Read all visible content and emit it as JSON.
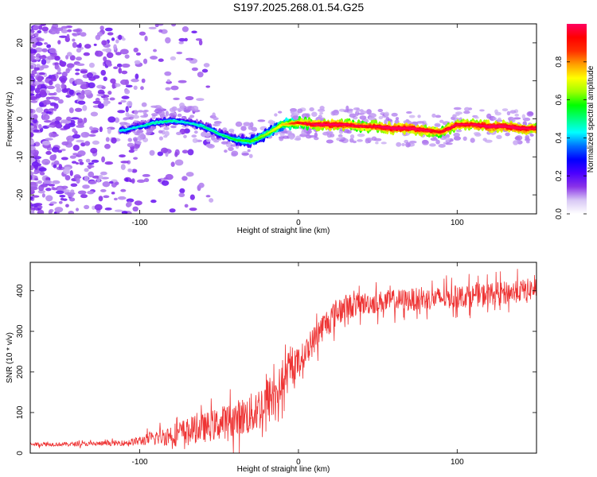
{
  "title": "S197.2025.268.01.54.G25",
  "chart_data": [
    {
      "type": "heatmap",
      "xlabel": "Height of straight line (km)",
      "ylabel": "Frequency (Hz)",
      "xlim": [
        -169,
        150
      ],
      "ylim": [
        -25,
        25
      ],
      "xticks": [
        -100,
        0,
        100
      ],
      "yticks": [
        -20,
        -10,
        0,
        10,
        20
      ],
      "ridge_x": [
        -110,
        -100,
        -90,
        -80,
        -70,
        -60,
        -50,
        -40,
        -30,
        -20,
        -10,
        0,
        10,
        20,
        30,
        40,
        50,
        60,
        70,
        80,
        90,
        100,
        110,
        120,
        130,
        140,
        150
      ],
      "ridge_freq": [
        -3,
        -2,
        -1,
        -0.5,
        -1,
        -2,
        -4,
        -5.5,
        -6,
        -4,
        -1.5,
        -1,
        -1.5,
        -1.5,
        -1.5,
        -2,
        -2,
        -2.5,
        -2.5,
        -3,
        -3.5,
        -1.5,
        -1.5,
        -2,
        -2,
        -2.5,
        -2.5
      ],
      "ridge_amp": [
        0.3,
        0.3,
        0.35,
        0.35,
        0.3,
        0.35,
        0.35,
        0.4,
        0.45,
        0.5,
        0.6,
        0.75,
        0.85,
        0.9,
        0.85,
        0.8,
        0.85,
        0.9,
        0.9,
        0.85,
        0.8,
        0.85,
        0.85,
        0.9,
        0.9,
        0.9,
        0.85
      ],
      "noise_region_x": [
        -169,
        -100
      ],
      "colorbar": {
        "label": "Normalized spectral amplitude",
        "range": [
          0.0,
          1.0
        ],
        "ticks": [
          "0.0",
          "0.2",
          "0.4",
          "0.6",
          "0.8"
        ],
        "tick_values": [
          0.0,
          0.2,
          0.4,
          0.6,
          0.8
        ],
        "colors": [
          "#ffffff",
          "#d8c8f5",
          "#8a33e8",
          "#4b00ff",
          "#0000ff",
          "#0070ff",
          "#00ffff",
          "#00ff80",
          "#00ff00",
          "#a0ff00",
          "#ffff00",
          "#ffa000",
          "#ff3000",
          "#ff0000",
          "#ff0060"
        ]
      }
    },
    {
      "type": "line",
      "xlabel": "Height of straight line (km)",
      "ylabel": "SNR (10 * v/v)",
      "xlim": [
        -169,
        150
      ],
      "ylim": [
        0,
        470
      ],
      "xticks": [
        -100,
        0,
        100
      ],
      "yticks": [
        0,
        100,
        200,
        300,
        400
      ],
      "line_color": "#ee3333",
      "series": [
        {
          "name": "SNR",
          "x": [
            -169,
            -150,
            -130,
            -110,
            -100,
            -90,
            -80,
            -70,
            -60,
            -50,
            -40,
            -30,
            -25,
            -20,
            -15,
            -10,
            -5,
            0,
            5,
            10,
            15,
            20,
            25,
            30,
            40,
            50,
            60,
            70,
            80,
            90,
            100,
            110,
            120,
            130,
            140,
            150
          ],
          "values": [
            22,
            22,
            23,
            25,
            30,
            38,
            45,
            55,
            62,
            72,
            85,
            95,
            110,
            125,
            145,
            170,
            205,
            225,
            250,
            280,
            310,
            330,
            350,
            360,
            368,
            372,
            375,
            378,
            380,
            382,
            385,
            388,
            392,
            395,
            400,
            405
          ],
          "noise_amplitude": [
            6,
            6,
            7,
            8,
            15,
            22,
            35,
            40,
            45,
            50,
            55,
            65,
            70,
            80,
            70,
            60,
            55,
            45,
            40,
            45,
            45,
            45,
            45,
            40,
            35,
            35,
            35,
            35,
            35,
            35,
            35,
            35,
            35,
            35,
            35,
            35
          ]
        }
      ]
    }
  ]
}
